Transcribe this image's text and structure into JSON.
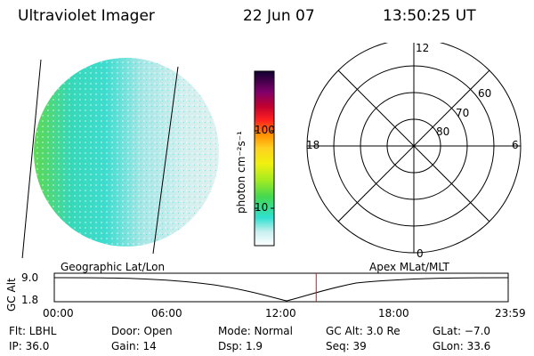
{
  "header": {
    "instrument": "Ultraviolet Imager",
    "date": "22 Jun 07",
    "time": "13:50:25 UT"
  },
  "colorbar": {
    "label": "photon cm⁻²s⁻¹",
    "ticks": [
      "100",
      "10"
    ]
  },
  "polar_plot": {
    "mlt_labels": {
      "top": "12",
      "left": "18",
      "right": "6",
      "bottom": "0"
    },
    "lat_labels": [
      "60",
      "70",
      "80"
    ]
  },
  "timeline": {
    "left_label": "Geographic Lat/Lon",
    "right_label": "Apex MLat/MLT",
    "axis_title": "GC Alt",
    "alt_ticks": [
      "9.0",
      "1.8"
    ],
    "time_ticks": [
      "00:00",
      "06:00",
      "12:00",
      "18:00",
      "23:59"
    ],
    "current_time_fraction": 0.577
  },
  "footer": {
    "flt": "Flt: LBHL",
    "door": "Door: Open",
    "mode": "Mode: Normal",
    "gc_alt": "GC Alt: 3.0 Re",
    "glat": "GLat:  −7.0",
    "ip": "IP: 36.0",
    "gain": "Gain: 14",
    "dsp": "Dsp:    1.9",
    "seq": "Seq: 39",
    "glon": "GLon:  33.6"
  },
  "colors": {
    "marker": "#ff0000",
    "aurora_bright": "#66dd33",
    "aurora_mid": "#33ddcc",
    "aurora_dim": "#bfe9ea"
  }
}
